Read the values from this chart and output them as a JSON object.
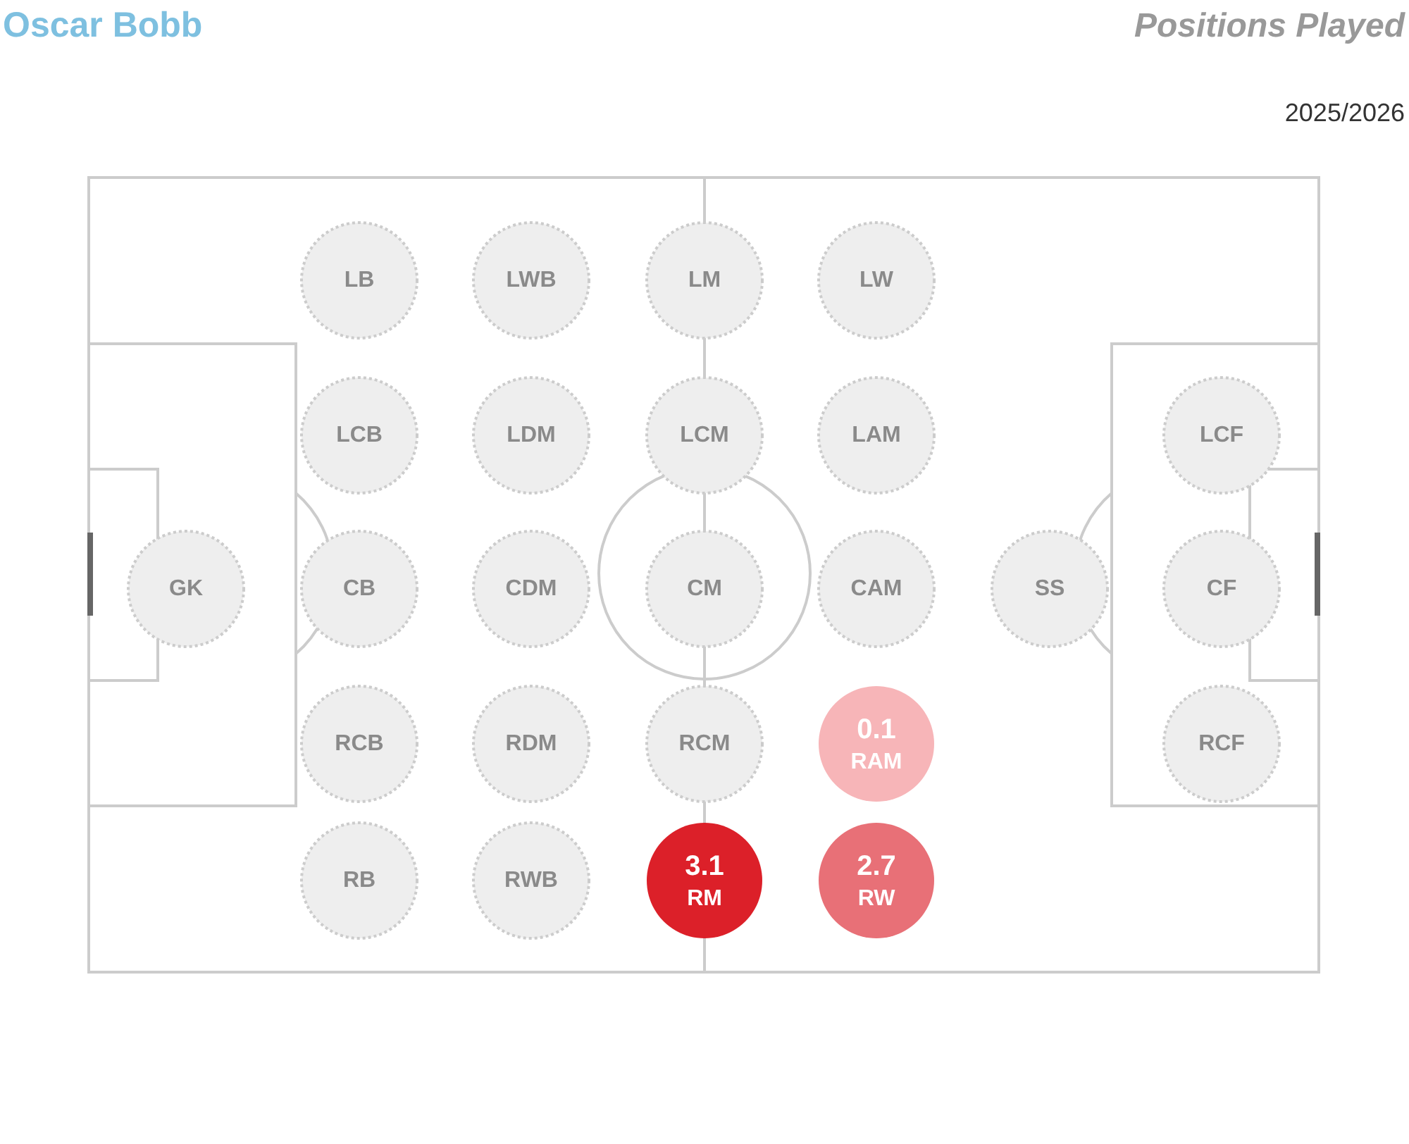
{
  "chart_data": {
    "type": "other",
    "title": "Positions Played",
    "subtitle": "2025/2026",
    "annotations": [
      "Oscar Bobb"
    ],
    "categories": [
      "LB",
      "LWB",
      "LM",
      "LW",
      "LCB",
      "LDM",
      "LCM",
      "LAM",
      "LCF",
      "GK",
      "CB",
      "CDM",
      "CM",
      "CAM",
      "SS",
      "CF",
      "RCB",
      "RDM",
      "RCM",
      "RAM",
      "RCF",
      "RB",
      "RWB",
      "RM",
      "RW"
    ],
    "values": [
      null,
      null,
      null,
      null,
      null,
      null,
      null,
      null,
      null,
      null,
      null,
      null,
      null,
      null,
      null,
      null,
      null,
      null,
      null,
      0.1,
      null,
      null,
      null,
      3.1,
      2.7
    ],
    "colors": [
      "#eeeeee",
      "#eeeeee",
      "#eeeeee",
      "#eeeeee",
      "#eeeeee",
      "#eeeeee",
      "#eeeeee",
      "#eeeeee",
      "#eeeeee",
      "#eeeeee",
      "#eeeeee",
      "#eeeeee",
      "#eeeeee",
      "#eeeeee",
      "#eeeeee",
      "#eeeeee",
      "#eeeeee",
      "#eeeeee",
      "#eeeeee",
      "#f7b5b8",
      "#eeeeee",
      "#eeeeee",
      "#eeeeee",
      "#dc2029",
      "#e87077"
    ],
    "data_labels": true
  }
}
